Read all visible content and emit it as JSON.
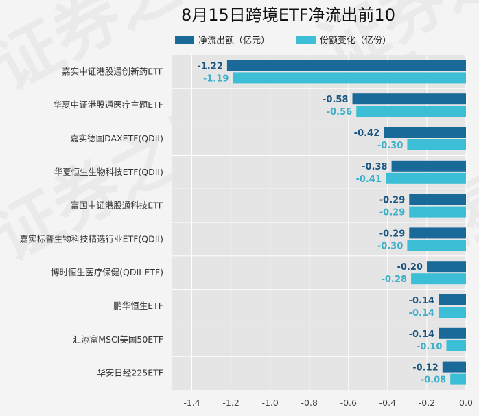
{
  "chart_data": {
    "type": "bar",
    "orientation": "horizontal",
    "title": "8月15日跨境ETF净流出前10",
    "legend_position": "top",
    "grid": true,
    "xlim": [
      -1.5,
      0.0
    ],
    "xticks": [
      -1.4,
      -1.2,
      -1.0,
      -0.8,
      -0.6,
      -0.4,
      -0.2,
      0.0
    ],
    "xtick_labels": [
      "-1.4",
      "-1.2",
      "-1.0",
      "-0.8",
      "-0.6",
      "-0.4",
      "-0.2",
      "0.0"
    ],
    "categories": [
      "嘉实中证港股通创新药ETF",
      "华夏中证港股通医疗主题ETF",
      "嘉实德国DAXETF(QDII)",
      "华夏恒生生物科技ETF(QDII)",
      "富国中证港股通科技ETF",
      "嘉实标普生物科技精选行业ETF(QDII)",
      "博时恒生医疗保健(QDII-ETF)",
      "鹏华恒生ETF",
      "汇添富MSCI美国50ETF",
      "华安日经225ETF"
    ],
    "series": [
      {
        "name": "净流出额（亿元）",
        "color": "#1a6a99",
        "label_color": "#1a5580",
        "values": [
          -1.22,
          -0.58,
          -0.42,
          -0.38,
          -0.29,
          -0.29,
          -0.2,
          -0.14,
          -0.14,
          -0.12
        ],
        "value_labels": [
          "-1.22",
          "-0.58",
          "-0.42",
          "-0.38",
          "-0.29",
          "-0.29",
          "-0.20",
          "-0.14",
          "-0.14",
          "-0.12"
        ]
      },
      {
        "name": "份额变化（亿份）",
        "color": "#3cbfd6",
        "label_color": "#3ab0c9",
        "values": [
          -1.19,
          -0.56,
          -0.3,
          -0.41,
          -0.29,
          -0.3,
          -0.28,
          -0.14,
          -0.1,
          -0.08
        ],
        "value_labels": [
          "-1.19",
          "-0.56",
          "-0.30",
          "-0.41",
          "-0.29",
          "-0.30",
          "-0.28",
          "-0.14",
          "-0.10",
          "-0.08"
        ]
      }
    ]
  },
  "watermark": {
    "text": "证券之星",
    "tiles": [
      {
        "text": "证券之星",
        "nx": 0.02,
        "ny": 0.22,
        "rotate": -28
      },
      {
        "text": "证券之星",
        "nx": 0.02,
        "ny": 0.63,
        "rotate": -28
      },
      {
        "text": "证券之星",
        "nx": 0.45,
        "ny": 0.52,
        "rotate": -28
      },
      {
        "text": "证券之星",
        "nx": 0.7,
        "ny": 0.18,
        "rotate": -28
      },
      {
        "text": "证券之星",
        "nx": 0.62,
        "ny": 0.8,
        "rotate": -28
      }
    ]
  }
}
